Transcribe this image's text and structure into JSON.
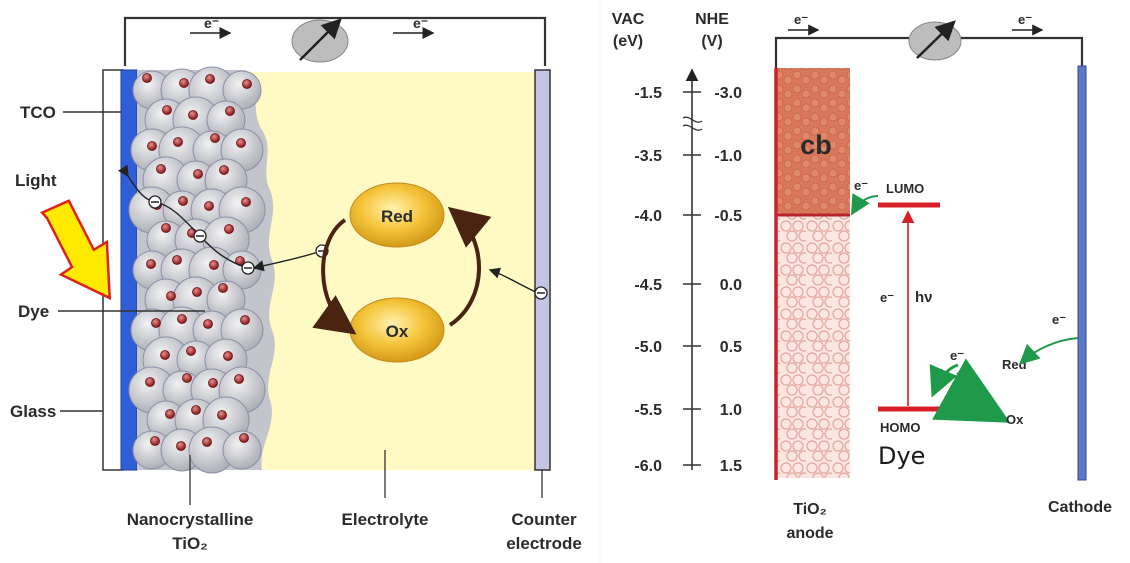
{
  "left_diagram": {
    "electron_top_left": "e⁻",
    "electron_top_right": "e⁻",
    "tco_label": "TCO",
    "light_label": "Light",
    "dye_label": "Dye",
    "glass_label": "Glass",
    "red_label": "Red",
    "ox_label": "Ox",
    "nanocrystalline_line1": "Nanocrystalline",
    "nanocrystalline_line2": "TiO₂",
    "electrolyte_label": "Electrolyte",
    "counter_line1": "Counter",
    "counter_line2": "electrode",
    "colors": {
      "electrolyte": "#fff7b0",
      "tco": "#2f5ed6",
      "redox_ball": "#f2b82a",
      "arrow": "#ffe600",
      "arrow_stroke": "#e0201a"
    }
  },
  "right_diagram": {
    "vac_header_line1": "VAC",
    "vac_header_line2": "(eV)",
    "nhe_header_line1": "NHE",
    "nhe_header_line2": "(V)",
    "scale": [
      {
        "vac": "-1.5",
        "nhe": "-3.0"
      },
      {
        "vac": "-3.5",
        "nhe": "-1.0"
      },
      {
        "vac": "-4.0",
        "nhe": "-0.5"
      },
      {
        "vac": "-4.5",
        "nhe": "0.0"
      },
      {
        "vac": "-5.0",
        "nhe": "0.5"
      },
      {
        "vac": "-5.5",
        "nhe": "1.0"
      },
      {
        "vac": "-6.0",
        "nhe": "1.5"
      }
    ],
    "electron_top_left": "e⁻",
    "electron_top_right": "e⁻",
    "cb_label": "cb",
    "lumo_electron": "e⁻",
    "lumo_label": "LUMO",
    "excitation_electron": "e⁻",
    "hv_label": "hν",
    "homo_label": "HOMO",
    "dye_label": "Dye",
    "red_electron": "e⁻",
    "red_label": "Red",
    "ox_label": "Ox",
    "cathode_electron": "e⁻",
    "anode_line1": "TiO₂",
    "anode_line2": "anode",
    "cathode_label": "Cathode",
    "colors": {
      "cb": "#d9775a",
      "level_line": "#d61f26",
      "green_arrow": "#1f9a4a",
      "cathode": "#5e78c8"
    }
  }
}
